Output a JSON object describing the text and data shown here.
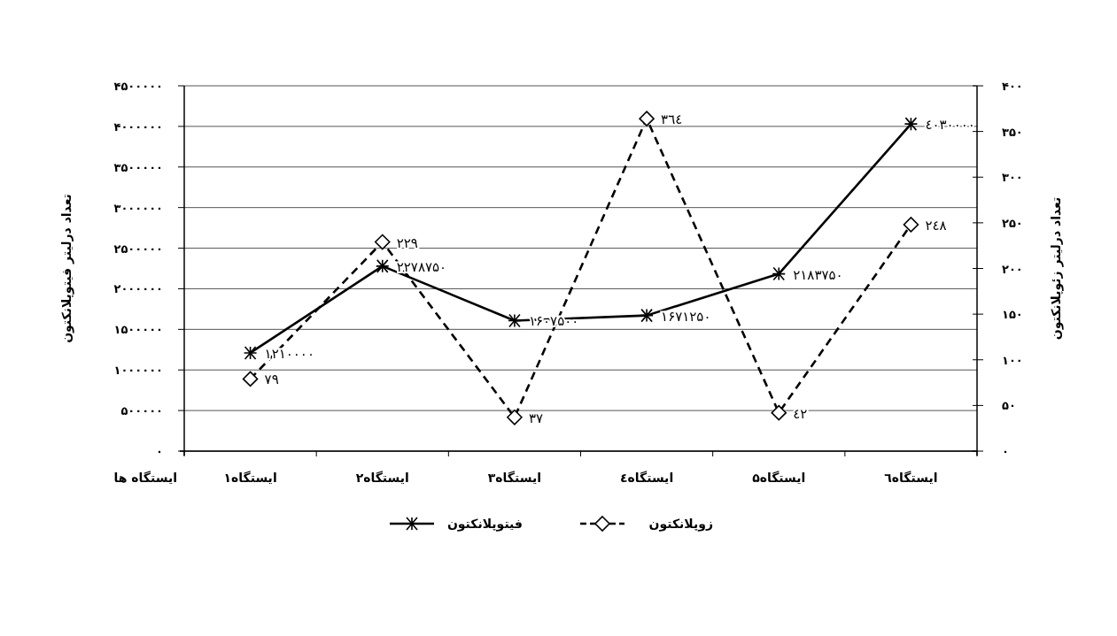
{
  "chart_data": {
    "type": "line",
    "categories": [
      "ایستگاه۱",
      "ایستگاه۲",
      "ایستگاه۳",
      "ایستگاه٤",
      "ایستگاه۵",
      "ایستگاه٦"
    ],
    "xlabel": "ایستگاه ها",
    "ylabel": "تعداد درلیتر فیتوپلانکتون",
    "y2label": "تعداد درلیتر زئوپلانکتون",
    "ylim": [
      0,
      4500000
    ],
    "yticks": [
      {
        "value": 0,
        "label": "۰"
      },
      {
        "value": 500000,
        "label": "۵۰۰۰۰۰"
      },
      {
        "value": 1000000,
        "label": "۱۰۰۰۰۰۰"
      },
      {
        "value": 1500000,
        "label": "۱۵۰۰۰۰۰"
      },
      {
        "value": 2000000,
        "label": "۲۰۰۰۰۰۰"
      },
      {
        "value": 2500000,
        "label": "۲۵۰۰۰۰۰"
      },
      {
        "value": 3000000,
        "label": "۳۰۰۰۰۰۰"
      },
      {
        "value": 3500000,
        "label": "۳۵۰۰۰۰۰"
      },
      {
        "value": 4000000,
        "label": "۴۰۰۰۰۰۰"
      },
      {
        "value": 4500000,
        "label": "۴۵۰۰۰۰۰"
      }
    ],
    "y2lim": [
      0,
      400
    ],
    "y2ticks": [
      {
        "value": 0,
        "label": "۰"
      },
      {
        "value": 50,
        "label": "۵۰"
      },
      {
        "value": 100,
        "label": "۱۰۰"
      },
      {
        "value": 150,
        "label": "۱۵۰"
      },
      {
        "value": 200,
        "label": "۲۰۰"
      },
      {
        "value": 250,
        "label": "۲۵۰"
      },
      {
        "value": 300,
        "label": "۳۰۰"
      },
      {
        "value": 350,
        "label": "۳۵۰"
      },
      {
        "value": 400,
        "label": "۴۰۰"
      }
    ],
    "grid": "y",
    "legend": "bottom",
    "series": [
      {
        "name": "فیتوپلانکتون",
        "color": "#000000",
        "marker": "cross",
        "line_style": "solid",
        "values": [
          1210000,
          2278750,
          1607500,
          1671250,
          2183750,
          4030000
        ],
        "value_labels": [
          "۱۲۱۰۰۰۰",
          "۲۲۷۸۷۵۰",
          "۱۶۰۷۵۰۰",
          "۱۶۷۱۲۵۰",
          "۲۱۸۳۷۵۰",
          "٤٠٣٠٠٠٠"
        ]
      },
      {
        "name": "زوپلانکتون",
        "color": "#000000",
        "marker": "diamond",
        "line_style": "dashed",
        "axis": "y2",
        "values": [
          79,
          229,
          37,
          364,
          42,
          248
        ],
        "value_labels": [
          "۷۹",
          "۲۲۹",
          "۳۷",
          "٣٦٤",
          "٤٢",
          "۲٤٨"
        ]
      }
    ]
  }
}
